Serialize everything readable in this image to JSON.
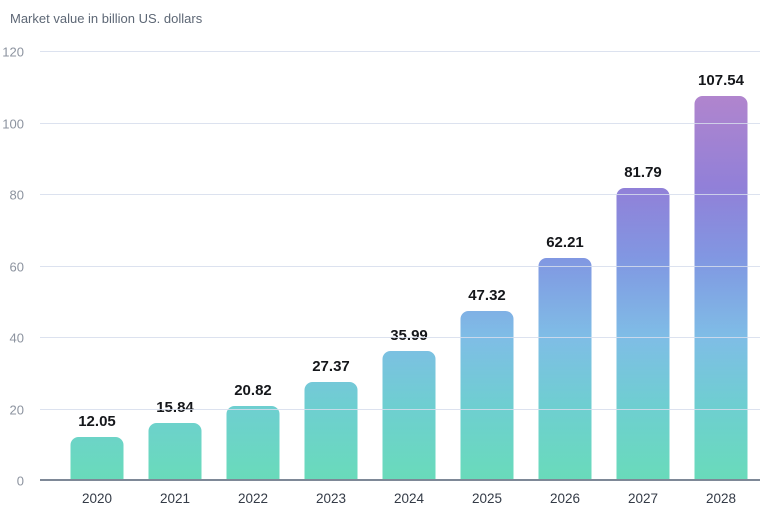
{
  "chart_data": {
    "type": "bar",
    "title": "Market value in billion US. dollars",
    "categories": [
      "2020",
      "2021",
      "2022",
      "2023",
      "2024",
      "2025",
      "2026",
      "2027",
      "2028"
    ],
    "values": [
      12.05,
      15.84,
      20.82,
      27.37,
      35.99,
      47.32,
      62.21,
      81.79,
      107.54
    ],
    "value_labels": [
      "12.05",
      "15.84",
      "20.82",
      "27.37",
      "35.99",
      "47.32",
      "62.21",
      "81.79",
      "107.54"
    ],
    "xlabel": "",
    "ylabel": "Market value in billion US. dollars",
    "ylim": [
      0,
      120
    ],
    "yticks": [
      0,
      20,
      40,
      60,
      80,
      100,
      120
    ],
    "grid": "horizontal",
    "legend": "none",
    "bar_gradient_bottom_to_top": [
      {
        "at_value": 0,
        "color": "#69dbba"
      },
      {
        "at_value": 20,
        "color": "#6ecfd0"
      },
      {
        "at_value": 40,
        "color": "#7fbde6"
      },
      {
        "at_value": 62,
        "color": "#8197e2"
      },
      {
        "at_value": 82,
        "color": "#9180d8"
      },
      {
        "at_value": 108,
        "color": "#b185cd"
      },
      {
        "at_value": 120,
        "color": "#bd89c9"
      }
    ],
    "colors": {
      "gridline": "#dde3ee",
      "axis_line": "#7e8897",
      "ytick_text": "#8c939f",
      "xtick_text": "#343b47",
      "value_text": "#15171b",
      "title_text": "#5d6775",
      "background": "#ffffff"
    }
  }
}
